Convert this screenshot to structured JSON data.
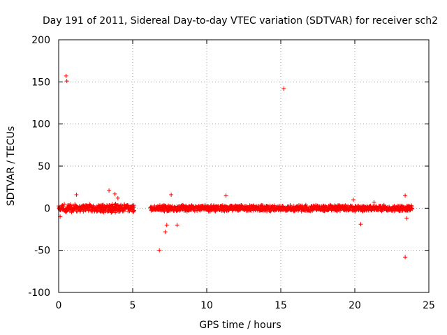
{
  "chart_data": {
    "type": "scatter",
    "title": "Day 191 of 2011, Sidereal Day-to-day VTEC variation (SDTVAR) for receiver sch2",
    "xlabel": "GPS time / hours",
    "ylabel": "SDTVAR / TECUs",
    "xlim": [
      0,
      25
    ],
    "ylim": [
      -100,
      200
    ],
    "xticks": [
      0,
      5,
      10,
      15,
      20,
      25
    ],
    "yticks": [
      -100,
      -50,
      0,
      50,
      100,
      150,
      200
    ],
    "xtick_labels": [
      "0",
      "5",
      "10",
      "15",
      "20",
      "25"
    ],
    "ytick_labels": [
      "-100",
      "-50",
      "0",
      "50",
      "100",
      "150",
      "200"
    ],
    "grid": true,
    "marker": "+",
    "color": "#ff0000",
    "data_segments": [
      {
        "x_start": 0.0,
        "x_end": 5.1,
        "spread": 4
      },
      {
        "x_start": 6.2,
        "x_end": 23.9,
        "spread": 3
      }
    ],
    "outliers": [
      {
        "x": 0.5,
        "y": 157
      },
      {
        "x": 0.55,
        "y": 151
      },
      {
        "x": 15.2,
        "y": 142
      },
      {
        "x": 6.8,
        "y": -50
      },
      {
        "x": 23.4,
        "y": -58
      },
      {
        "x": 7.2,
        "y": -28
      },
      {
        "x": 7.3,
        "y": -20
      },
      {
        "x": 8.0,
        "y": -20
      },
      {
        "x": 3.4,
        "y": 21
      },
      {
        "x": 3.8,
        "y": 17
      },
      {
        "x": 1.2,
        "y": 16
      },
      {
        "x": 7.6,
        "y": 16
      },
      {
        "x": 11.3,
        "y": 15
      },
      {
        "x": 23.4,
        "y": 15
      },
      {
        "x": 20.4,
        "y": -19
      },
      {
        "x": 0.1,
        "y": -10
      },
      {
        "x": 4.0,
        "y": 12
      },
      {
        "x": 19.9,
        "y": 10
      },
      {
        "x": 21.3,
        "y": 7
      },
      {
        "x": 23.5,
        "y": -12
      }
    ]
  }
}
